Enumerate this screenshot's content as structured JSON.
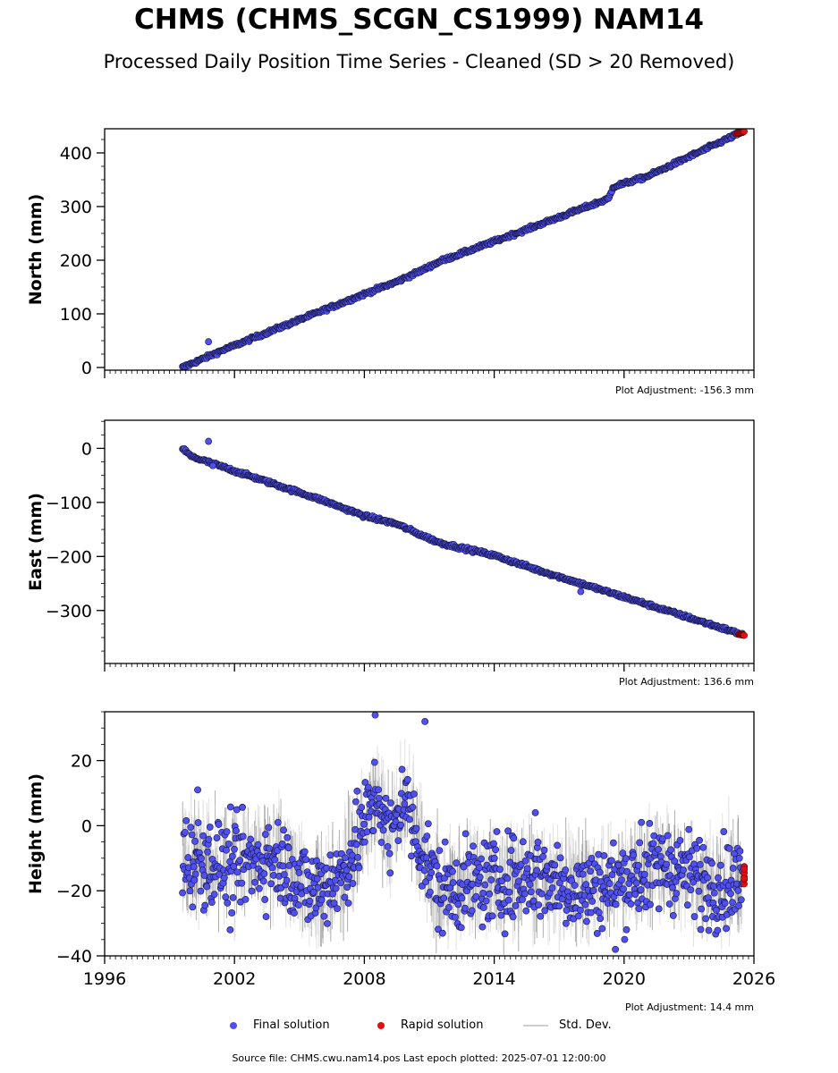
{
  "title": "CHMS (CHMS_SCGN_CS1999) NAM14",
  "subtitle": "Processed Daily Position Time Series - Cleaned (SD > 20 Removed)",
  "colors": {
    "final": "#5050f0",
    "rapid": "#e01010",
    "stddev": "#c8c8c8",
    "edge": "#14143c"
  },
  "chart_data": [
    {
      "type": "scatter",
      "ylabel": "North (mm)",
      "adjustment": "Plot Adjustment: -156.3 mm",
      "xlim": [
        1996,
        2026
      ],
      "ylim": [
        -5,
        445
      ],
      "xticks": [
        1996,
        2002,
        2008,
        2014,
        2020,
        2026
      ],
      "yticks": [
        0,
        100,
        200,
        300,
        400
      ],
      "ytick_labels": [
        "0",
        "100",
        "200",
        "300",
        "400"
      ],
      "show_xtick_labels": false,
      "series": [
        {
          "name": "Final solution",
          "role": "final",
          "trend": [
            [
              1999.6,
              0
            ],
            [
              2001.5,
              33
            ],
            [
              2003.5,
              65
            ],
            [
              2006.5,
              113
            ],
            [
              2008.0,
              137
            ],
            [
              2009.5,
              160
            ],
            [
              2010.6,
              180
            ],
            [
              2011.5,
              198
            ],
            [
              2014.0,
              235
            ],
            [
              2016.0,
              265
            ],
            [
              2019.3,
              315
            ],
            [
              2019.5,
              337
            ],
            [
              2021.0,
              355
            ],
            [
              2025.5,
              440
            ]
          ],
          "outliers": [
            [
              2000.8,
              48
            ]
          ]
        },
        {
          "name": "Rapid solution",
          "role": "rapid",
          "trend": [
            [
              2025.2,
              436
            ],
            [
              2025.55,
              440
            ]
          ]
        }
      ]
    },
    {
      "type": "scatter",
      "ylabel": "East (mm)",
      "adjustment": "Plot Adjustment: 136.6 mm",
      "xlim": [
        1996,
        2026
      ],
      "ylim": [
        -398,
        52
      ],
      "xticks": [
        1996,
        2002,
        2008,
        2014,
        2020,
        2026
      ],
      "yticks": [
        -300,
        -200,
        -100,
        0
      ],
      "ytick_labels": [
        "−300",
        "−200",
        "−100",
        "0"
      ],
      "show_xtick_labels": false,
      "series": [
        {
          "name": "Final solution",
          "role": "final",
          "trend": [
            [
              1999.6,
              0
            ],
            [
              2000.0,
              -15
            ],
            [
              2003.0,
              -55
            ],
            [
              2006.0,
              -95
            ],
            [
              2008.0,
              -125
            ],
            [
              2009.5,
              -140
            ],
            [
              2010.6,
              -160
            ],
            [
              2011.5,
              -175
            ],
            [
              2014.0,
              -198
            ],
            [
              2016.0,
              -225
            ],
            [
              2020.0,
              -275
            ],
            [
              2025.5,
              -345
            ]
          ],
          "outliers": [
            [
              2000.8,
              13
            ],
            [
              2001.0,
              -32
            ],
            [
              2018.0,
              -265
            ]
          ]
        },
        {
          "name": "Rapid solution",
          "role": "rapid",
          "trend": [
            [
              2025.3,
              -344
            ],
            [
              2025.55,
              -346
            ]
          ]
        }
      ]
    },
    {
      "type": "scatter",
      "ylabel": "Height (mm)",
      "adjustment": "Plot Adjustment: 14.4 mm",
      "xlim": [
        1996,
        2026
      ],
      "ylim": [
        -40,
        35
      ],
      "xticks": [
        1996,
        2002,
        2008,
        2014,
        2020,
        2026
      ],
      "xtick_labels": [
        "1996",
        "2002",
        "2008",
        "2014",
        "2020",
        "2026"
      ],
      "yticks": [
        -40,
        -20,
        0,
        20
      ],
      "ytick_labels": [
        "−40",
        "−20",
        "0",
        "20"
      ],
      "show_xtick_labels": true,
      "series": [
        {
          "name": "Final solution",
          "role": "final",
          "trend": [
            [
              1999.6,
              -10
            ],
            [
              2002.0,
              -12
            ],
            [
              2004.0,
              -10
            ],
            [
              2005.5,
              -20
            ],
            [
              2007.0,
              -15
            ],
            [
              2008.6,
              10
            ],
            [
              2009.2,
              -5
            ],
            [
              2009.8,
              10
            ],
            [
              2010.5,
              -5
            ],
            [
              2011.5,
              -20
            ],
            [
              2014.0,
              -17
            ],
            [
              2016.0,
              -15
            ],
            [
              2018.0,
              -20
            ],
            [
              2020.0,
              -17
            ],
            [
              2022.0,
              -12
            ],
            [
              2024.0,
              -18
            ],
            [
              2025.5,
              -17
            ]
          ],
          "outliers": [
            [
              2008.5,
              34
            ],
            [
              2010.8,
              32
            ],
            [
              2000.3,
              11
            ],
            [
              2015.9,
              4
            ],
            [
              2019.6,
              -38
            ],
            [
              2020.8,
              1
            ],
            [
              2001.8,
              -32
            ]
          ]
        },
        {
          "name": "Rapid solution",
          "role": "rapid",
          "trend": [
            [
              2025.5,
              -11
            ],
            [
              2025.55,
              -18
            ]
          ]
        }
      ]
    }
  ],
  "legend": {
    "final": "Final solution",
    "rapid": "Rapid solution",
    "stddev": "Std. Dev."
  },
  "source": "Source file: CHMS.cwu.nam14.pos  Last epoch plotted: 2025-07-01 12:00:00"
}
